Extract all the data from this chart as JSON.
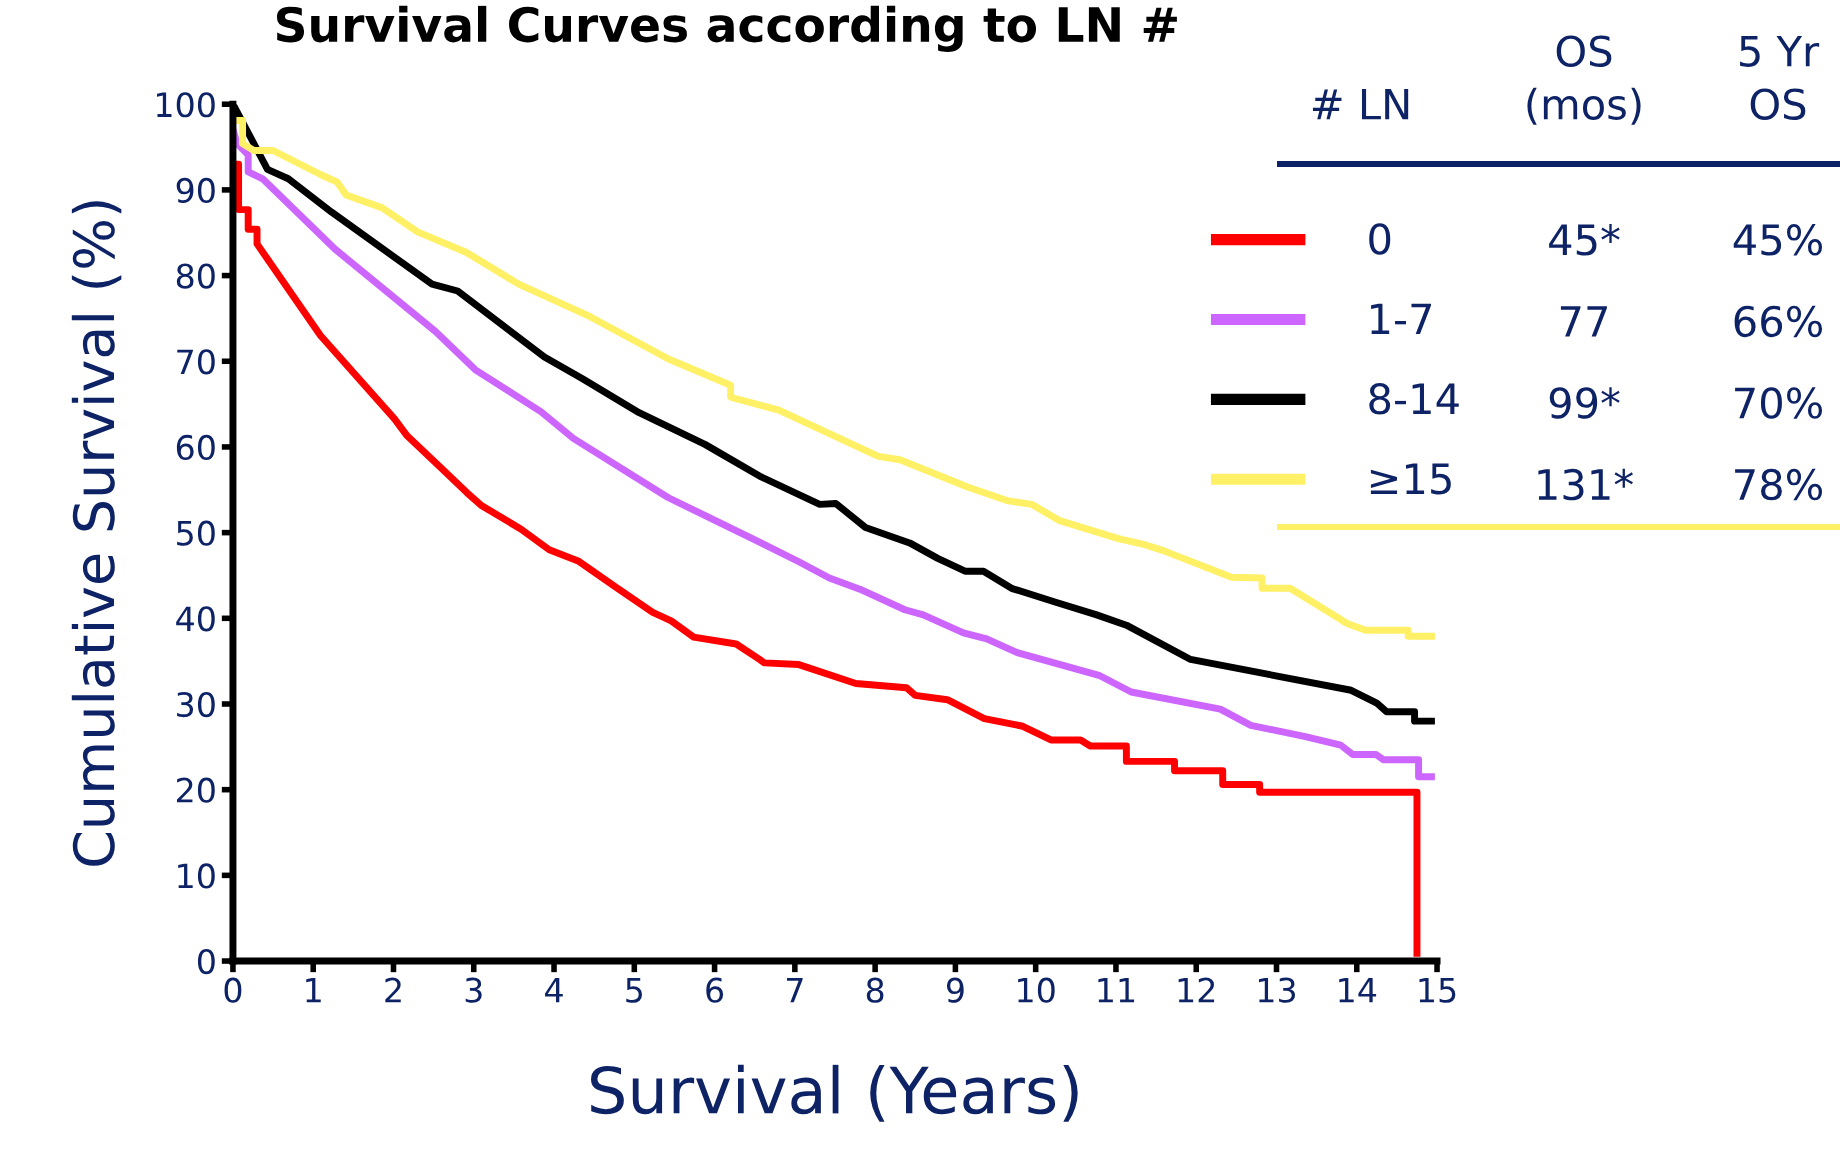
{
  "chart_data": {
    "type": "line",
    "title": "Survival Curves according to LN #",
    "xlabel": "Survival (Years)",
    "ylabel": "Cumulative Survival (%)",
    "xlim": [
      0,
      15
    ],
    "ylim": [
      0,
      100
    ],
    "xticks": [
      0,
      1,
      2,
      3,
      4,
      5,
      6,
      7,
      8,
      9,
      10,
      11,
      12,
      13,
      14,
      15
    ],
    "yticks": [
      0,
      10,
      20,
      30,
      40,
      50,
      60,
      70,
      80,
      90,
      100
    ],
    "legend": "top right",
    "annotations": [
      "# LN",
      "OS\n(mos)",
      "5 Yr\nOS",
      "45*",
      "45%",
      "77",
      "66%",
      "99*",
      "70%",
      "131*",
      "78%"
    ],
    "series": [
      {
        "name": "0",
        "color": "#ff0000",
        "x": [
          0,
          0.07,
          0.07,
          0.19,
          0.19,
          0.3,
          0.3,
          1.09,
          2.01,
          2.17,
          2.62,
          2.91,
          3.09,
          3.59,
          3.94,
          4.3,
          4.76,
          5.23,
          5.46,
          5.74,
          6.27,
          6.56,
          6.62,
          7.05,
          7.76,
          8.39,
          8.5,
          8.9,
          9.36,
          9.84,
          10.19,
          10.56,
          10.68,
          11.13,
          11.13,
          11.73,
          11.73,
          12.33,
          12.33,
          12.79,
          12.79,
          14.75,
          14.75
        ],
        "values": [
          93,
          93,
          87.7,
          87.7,
          85.4,
          85.4,
          83.7,
          73,
          63.3,
          61.3,
          57.3,
          54.7,
          53.2,
          50.4,
          48,
          46.7,
          43.7,
          40.7,
          39.7,
          37.8,
          37,
          35.2,
          34.8,
          34.6,
          32.4,
          31.9,
          31,
          30.5,
          28.3,
          27.4,
          25.8,
          25.8,
          25.1,
          25.1,
          23.3,
          23.3,
          22.2,
          22.2,
          20.6,
          20.6,
          19.7,
          19.7,
          0.9
        ]
      },
      {
        "name": "1-7",
        "color": "#cc66ff",
        "x": [
          0,
          0.05,
          0.19,
          0.19,
          0.37,
          1.27,
          2.52,
          3.02,
          3.84,
          4.24,
          5.42,
          6.56,
          7.05,
          7.43,
          7.81,
          8.37,
          8.6,
          9.1,
          9.39,
          9.77,
          10.8,
          11.19,
          12.3,
          12.68,
          13.36,
          13.8,
          13.95,
          14.24,
          14.33,
          14.77,
          14.77,
          14.93
        ],
        "values": [
          97.1,
          95.4,
          94.1,
          92.1,
          91.3,
          83.1,
          73.5,
          69,
          64.1,
          61,
          54.1,
          48.9,
          46.6,
          44.7,
          43.4,
          41,
          40.4,
          38.3,
          37.6,
          36,
          33.3,
          31.4,
          29.4,
          27.5,
          26.2,
          25.2,
          24.1,
          24.1,
          23.5,
          23.5,
          21.5,
          21.5
        ]
      },
      {
        "name": "8-14",
        "color": "#000000",
        "x": [
          0.03,
          0.43,
          0.69,
          1.23,
          2.48,
          2.8,
          3.88,
          4.35,
          5.06,
          5.88,
          6.56,
          7.31,
          7.51,
          7.88,
          8.43,
          8.78,
          9.12,
          9.35,
          9.7,
          10.24,
          10.76,
          11.13,
          11.93,
          13.93,
          14.25,
          14.37,
          14.72,
          14.72,
          14.93
        ],
        "values": [
          99.5,
          92.4,
          91.3,
          87.4,
          79,
          78.2,
          70.5,
          68,
          64,
          60.3,
          56.6,
          53.3,
          53.4,
          50.6,
          48.8,
          47,
          45.5,
          45.5,
          43.5,
          41.9,
          40.4,
          39.2,
          35.2,
          31.6,
          30.1,
          29.1,
          29.1,
          28,
          28
        ]
      },
      {
        "name": "≥15",
        "color": "#fff066",
        "x": [
          0,
          0.12,
          0.12,
          0.26,
          0.5,
          1.09,
          1.3,
          1.41,
          1.86,
          2.3,
          2.91,
          3.56,
          4.45,
          5.42,
          6.2,
          6.2,
          6.8,
          8.04,
          8.31,
          9.16,
          9.66,
          9.95,
          10.3,
          11.03,
          11.32,
          11.59,
          12.44,
          12.82,
          12.82,
          13.17,
          13.64,
          13.88,
          14.11,
          14.64,
          14.64,
          14.93
        ],
        "values": [
          98.1,
          98.1,
          95.4,
          94.6,
          94.6,
          91.8,
          90.9,
          89.4,
          87.9,
          85.1,
          82.7,
          79,
          75.2,
          70.3,
          67.2,
          65.8,
          64.3,
          58.9,
          58.5,
          55.3,
          53.7,
          53.3,
          51.4,
          49.3,
          48.7,
          47.9,
          44.8,
          44.7,
          43.5,
          43.5,
          40.8,
          39.4,
          38.6,
          38.6,
          37.9,
          37.9
        ]
      }
    ]
  }
}
